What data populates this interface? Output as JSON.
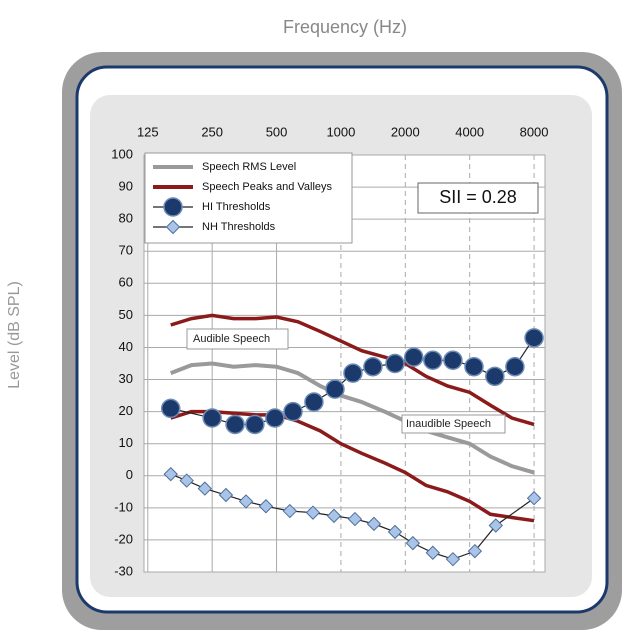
{
  "chart_data": {
    "type": "audiogram",
    "title": "Frequency (Hz)",
    "y_label": "Level (dB SPL)",
    "log_x": true,
    "grid": true,
    "xlim": [
      120,
      9000
    ],
    "ylim": [
      -30,
      100
    ],
    "xticks": [
      125,
      250,
      500,
      1000,
      2000,
      4000,
      8000
    ],
    "yticks": [
      100,
      90,
      80,
      70,
      60,
      50,
      40,
      30,
      20,
      10,
      0,
      -10,
      -20,
      -30
    ],
    "series": [
      {
        "name": "Speech RMS Level",
        "color": "#9a9a9a",
        "style": "line",
        "x": [
          160,
          200,
          250,
          315,
          400,
          500,
          630,
          800,
          1000,
          1250,
          1600,
          2000,
          2500,
          3150,
          4000,
          5000,
          6300,
          8000
        ],
        "values": [
          32,
          34.5,
          35,
          34,
          34.5,
          34,
          32,
          28,
          25,
          23,
          20,
          17,
          14,
          12,
          10,
          6,
          3,
          1
        ]
      },
      {
        "name": "Speech Peaks and Valleys",
        "color": "#8b1a1a",
        "style": "band",
        "x": [
          160,
          200,
          250,
          315,
          400,
          500,
          630,
          800,
          1000,
          1250,
          1600,
          2000,
          2500,
          3150,
          4000,
          5000,
          6300,
          8000
        ],
        "values": [
          47,
          49,
          50,
          49,
          49,
          49.5,
          48,
          45,
          42,
          39,
          37,
          35,
          31,
          28,
          26,
          22,
          18,
          16
        ],
        "lower": [
          18,
          20,
          20,
          19.5,
          19,
          19,
          17,
          14,
          10,
          7,
          4,
          1,
          -3,
          -5,
          -8,
          -12,
          -13,
          -14
        ]
      },
      {
        "name": "HI Thresholds",
        "color": "#1b3a6b",
        "style": "circle",
        "x": [
          160,
          250,
          320,
          396,
          491,
          597,
          748,
          938,
          1138,
          1411,
          1790,
          2190,
          2690,
          3340,
          4190,
          5245,
          6510,
          8000
        ],
        "values": [
          21,
          18,
          16,
          16,
          18,
          20,
          23,
          27,
          32,
          34,
          35,
          37,
          36,
          36,
          34,
          31,
          34,
          43
        ]
      },
      {
        "name": "NH Thresholds",
        "color": "#a9c4e6",
        "style": "diamond",
        "x": [
          160,
          190,
          231,
          290,
          360,
          446,
          577,
          740,
          928,
          1163,
          1427,
          1790,
          2170,
          2690,
          3340,
          4230,
          5300,
          8000
        ],
        "values": [
          0.5,
          -1.5,
          -4,
          -6,
          -8,
          -9.5,
          -11,
          -11.5,
          -12.5,
          -13.5,
          -15,
          -17.5,
          -21,
          -24,
          -26,
          -23.5,
          -15.5,
          -7
        ]
      }
    ],
    "annotations": [
      "Audible Speech",
      "Inaudible Speech",
      "SII = 0.28"
    ]
  }
}
